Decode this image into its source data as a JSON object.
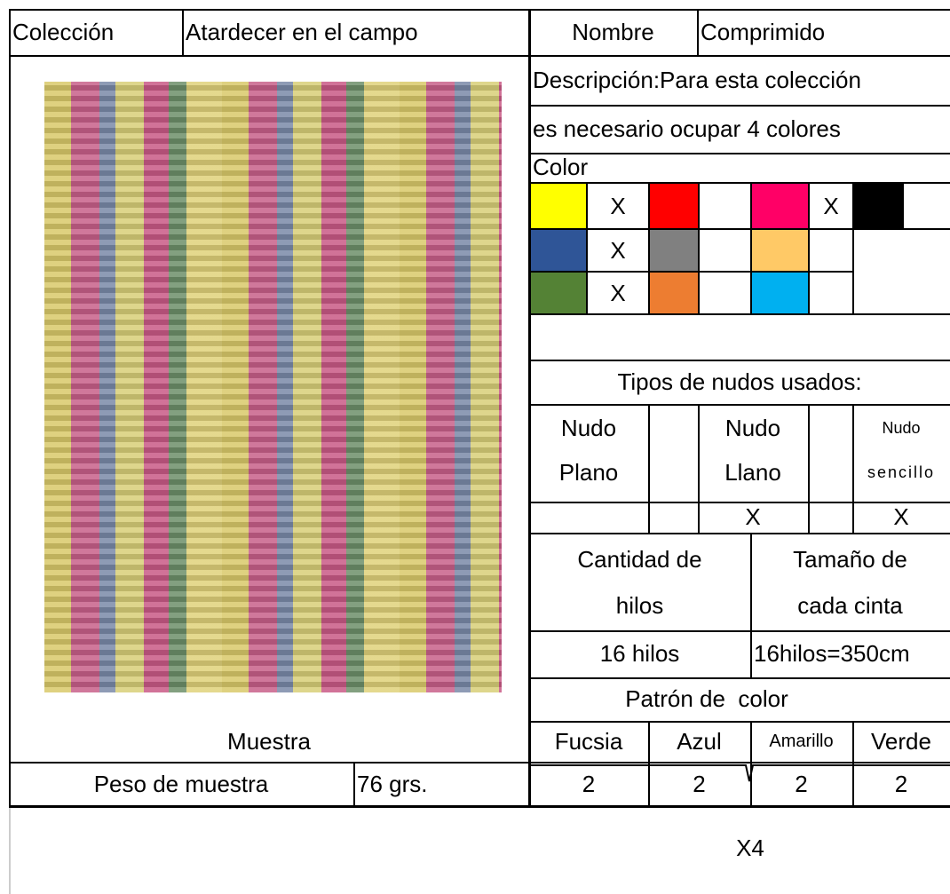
{
  "left": {
    "collection_label": "Colección",
    "collection": "Atardecer en el campo",
    "sample_label": "Muestra",
    "weight_label": "Peso de muestra",
    "weight": "76 grs."
  },
  "right": {
    "name_label": "Nombre",
    "name": "Comprimido",
    "description": [
      "Descripción:Para esta colección",
      "es necesario ocupar 4 colores"
    ],
    "color_label": "Color",
    "colors": [
      [
        {
          "color": "#ffff00",
          "mark": "X"
        },
        {
          "color": "#ff0000"
        },
        {
          "color": "#ff0066",
          "mark": "X"
        },
        {
          "color": "#000000"
        }
      ],
      [
        {
          "color": "#2f5597",
          "mark": "X"
        },
        {
          "color": "#808080"
        },
        {
          "color": "#ffc966"
        }
      ],
      [
        {
          "color": "#548235",
          "mark": "X"
        },
        {
          "color": "#ed7d31"
        },
        {
          "color": "#00b0f0"
        }
      ]
    ],
    "knots_title": "Tipos de nudos usados:",
    "knots": [
      {
        "label": [
          "Nudo",
          "Plano"
        ]
      },
      {
        "label": [
          "Nudo",
          "Llano"
        ],
        "mark": "X"
      },
      {
        "label": [
          "Nudo",
          "sencillo"
        ],
        "mark": "X"
      }
    ],
    "threads": {
      "label": [
        "Cantidad de",
        "hilos"
      ],
      "value": "16 hilos"
    },
    "tape": {
      "label": [
        "Tamaño de",
        "cada cinta"
      ],
      "value": "16hilos=350cm"
    },
    "pattern_title": "Patrón de  color",
    "pattern": [
      {
        "name": "Fucsia",
        "count": 2
      },
      {
        "name": "Azul",
        "count": 2
      },
      {
        "name": "Amarillo",
        "count": 2
      },
      {
        "name": "Verde",
        "count": 2
      }
    ],
    "repeat": "X4"
  }
}
